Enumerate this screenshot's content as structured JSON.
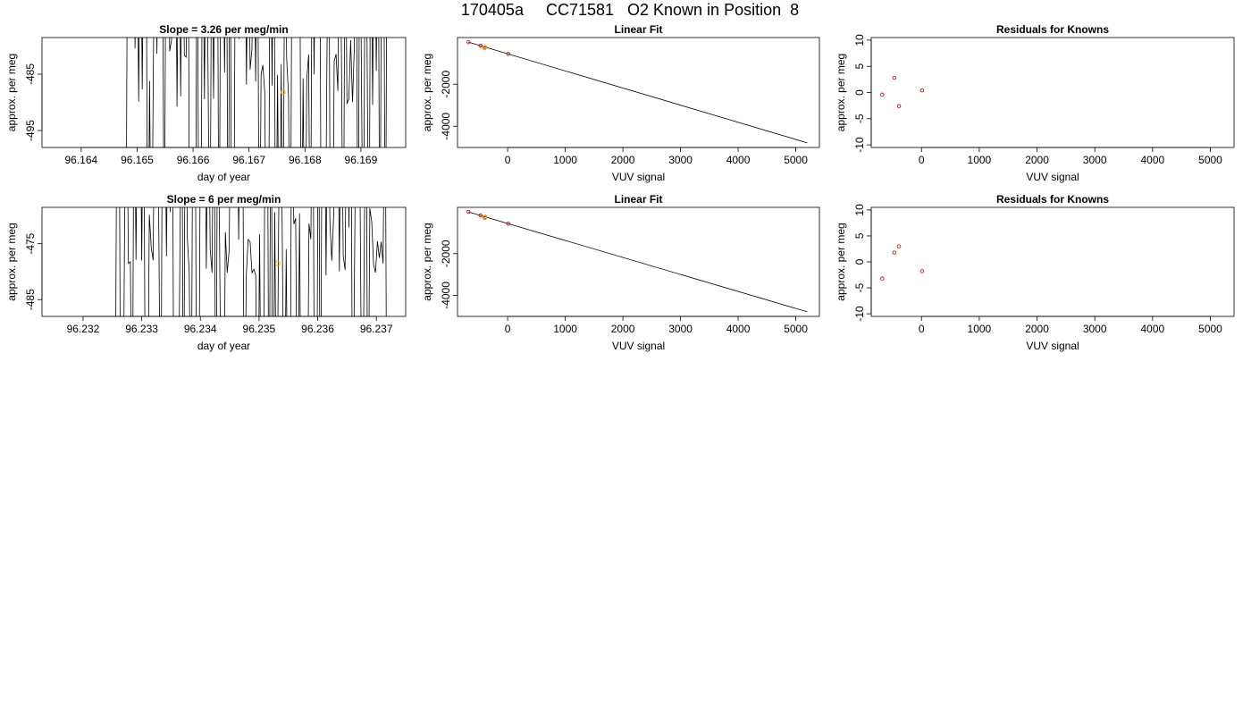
{
  "title": "170405a     CC71581   O2 Known in Position  8",
  "colors": {
    "line": "#000000",
    "known_marker": "#cc0000",
    "sample_marker": "#ffa500"
  },
  "chart_data": [
    {
      "type": "line",
      "title": "Slope =  3.26  per meg/min",
      "xlabel": "day of year",
      "ylabel": "approx. per meg",
      "xlim": [
        96.1633,
        96.1698
      ],
      "ylim": [
        -498,
        -478.5
      ],
      "xticks": [
        96.164,
        96.165,
        96.166,
        96.167,
        96.168,
        96.169
      ],
      "xtick_labels": [
        "96.164",
        "96.165",
        "96.166",
        "96.167",
        "96.168",
        "96.169"
      ],
      "yticks": [
        -485,
        -495
      ],
      "ytick_labels": [
        "-485",
        "-495"
      ],
      "x_start": 96.16457,
      "x_end": 96.16947,
      "seed": 11,
      "sample_point": {
        "x": 96.16761,
        "y": -488.2
      }
    },
    {
      "type": "scatter",
      "title": "Linear Fit",
      "xlabel": "VUV signal",
      "ylabel": "approx. per meg",
      "xlim": [
        -870,
        5410
      ],
      "ylim": [
        -5010,
        220
      ],
      "xticks": [
        0,
        1000,
        2000,
        3000,
        4000,
        5000
      ],
      "xtick_labels": [
        "0",
        "1000",
        "2000",
        "3000",
        "4000",
        "5000"
      ],
      "yticks": [
        -2000,
        -4000
      ],
      "ytick_labels": [
        "-2000",
        "-4000"
      ],
      "fit_line": {
        "x": [
          -680,
          5200
        ],
        "y": [
          0,
          -4790
        ]
      },
      "knowns": {
        "x": [
          -680,
          -470,
          -390,
          10
        ],
        "y": [
          0,
          -170,
          -240,
          -560
        ]
      },
      "sample": {
        "x": [
          -400
        ],
        "y": [
          -270
        ]
      }
    },
    {
      "type": "scatter",
      "title": "Residuals for Knowns",
      "xlabel": "VUV signal",
      "ylabel": "approx. per meg",
      "xlim": [
        -870,
        5410
      ],
      "ylim": [
        -10.5,
        10.5
      ],
      "xticks": [
        0,
        1000,
        2000,
        3000,
        4000,
        5000
      ],
      "xtick_labels": [
        "0",
        "1000",
        "2000",
        "3000",
        "4000",
        "5000"
      ],
      "yticks": [
        10,
        5,
        0,
        -5,
        -10
      ],
      "ytick_labels": [
        "10",
        "5",
        "0",
        "-5",
        "-10"
      ],
      "points": {
        "x": [
          -680,
          -470,
          -390,
          10
        ],
        "y": [
          -0.4,
          2.8,
          -2.6,
          0.4
        ]
      }
    },
    {
      "type": "line",
      "title": "Slope =  6  per meg/min",
      "xlabel": "day of year",
      "ylabel": "approx. per meg",
      "xlim": [
        96.2313,
        96.2375
      ],
      "ylim": [
        -488,
        -468.5
      ],
      "xticks": [
        96.232,
        96.233,
        96.234,
        96.235,
        96.236,
        96.237
      ],
      "xtick_labels": [
        "96.232",
        "96.233",
        "96.234",
        "96.235",
        "96.236",
        "96.237"
      ],
      "yticks": [
        -475,
        -485
      ],
      "ytick_labels": [
        "-475",
        "-485"
      ],
      "x_start": 96.23232,
      "x_end": 96.23718,
      "seed": 23,
      "sample_point": {
        "x": 96.23532,
        "y": -478.5
      }
    },
    {
      "type": "scatter",
      "title": "Linear Fit",
      "xlabel": "VUV signal",
      "ylabel": "approx. per meg",
      "xlim": [
        -870,
        5410
      ],
      "ylim": [
        -5010,
        220
      ],
      "xticks": [
        0,
        1000,
        2000,
        3000,
        4000,
        5000
      ],
      "xtick_labels": [
        "0",
        "1000",
        "2000",
        "3000",
        "4000",
        "5000"
      ],
      "yticks": [
        -2000,
        -4000
      ],
      "ytick_labels": [
        "-2000",
        "-4000"
      ],
      "fit_line": {
        "x": [
          -680,
          5200
        ],
        "y": [
          0,
          -4790
        ]
      },
      "knowns": {
        "x": [
          -680,
          -470,
          -390,
          10
        ],
        "y": [
          0,
          -170,
          -240,
          -560
        ]
      },
      "sample": {
        "x": [
          -400
        ],
        "y": [
          -270
        ]
      }
    },
    {
      "type": "scatter",
      "title": "Residuals for Knowns",
      "xlabel": "VUV signal",
      "ylabel": "approx. per meg",
      "xlim": [
        -870,
        5410
      ],
      "ylim": [
        -10.5,
        10.5
      ],
      "xticks": [
        0,
        1000,
        2000,
        3000,
        4000,
        5000
      ],
      "xtick_labels": [
        "0",
        "1000",
        "2000",
        "3000",
        "4000",
        "5000"
      ],
      "yticks": [
        10,
        5,
        0,
        -5,
        -10
      ],
      "ytick_labels": [
        "10",
        "5",
        "0",
        "-5",
        "-10"
      ],
      "points": {
        "x": [
          -680,
          -470,
          -390,
          10
        ],
        "y": [
          -3.2,
          1.8,
          3.0,
          -1.8
        ]
      }
    }
  ]
}
